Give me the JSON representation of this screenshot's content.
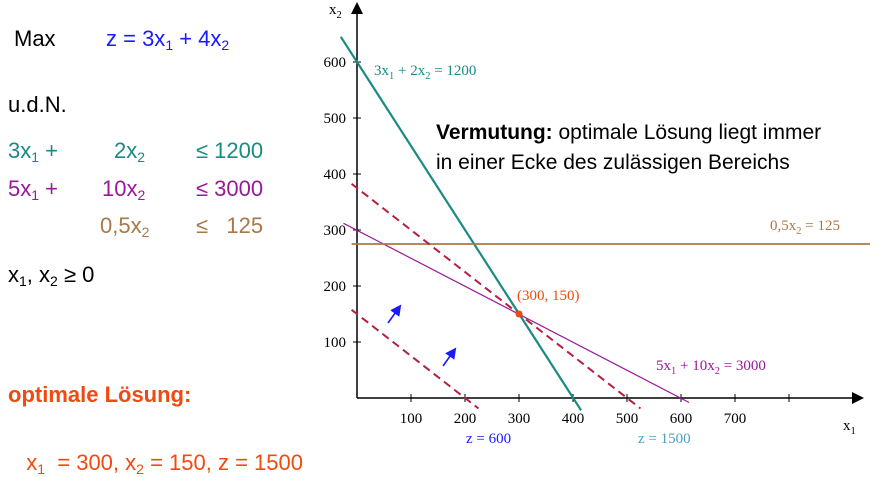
{
  "problem": {
    "max_label": "Max",
    "objective": [
      "z = 3x",
      "1",
      " + 4x",
      "2"
    ],
    "udn": "u.d.N.",
    "c1": {
      "a": [
        "3x",
        "1",
        " +"
      ],
      "b": [
        "2x",
        "2"
      ],
      "rel": "≤ 1200"
    },
    "c2": {
      "a": [
        "5x",
        "1",
        " +"
      ],
      "b": [
        "10x",
        "2"
      ],
      "rel": "≤ 3000"
    },
    "c3": {
      "b": [
        "0,5x",
        "2"
      ],
      "rel": "≤   125"
    },
    "nonneg": [
      "x",
      "1",
      ", x",
      "2",
      " ≥ 0"
    ]
  },
  "solution": {
    "heading": "optimale Lösung:",
    "values": [
      "x",
      "1",
      "  = 300, x",
      "2",
      " = 150, z = 1500"
    ]
  },
  "note": {
    "bold": "Vermutung:",
    "line1": " optimale Lösung liegt immer",
    "line2": "in einer Ecke des zulässigen Bereichs"
  },
  "plot": {
    "x_axis_label": [
      "x",
      "1"
    ],
    "y_axis_label": [
      "x",
      "2"
    ],
    "x_ticks": [
      100,
      200,
      300,
      400,
      500,
      600,
      700
    ],
    "y_ticks": [
      100,
      200,
      300,
      400,
      500,
      600
    ],
    "line_labels": {
      "c1": [
        "3x",
        "1",
        " + 2x",
        "2",
        " = 1200"
      ],
      "c2": [
        "5x",
        "1",
        " + 10x",
        "2",
        " = 3000"
      ],
      "c3": [
        "0,5x",
        "2",
        " = 125"
      ],
      "z600": "z = 600",
      "z1500": "z = 1500"
    },
    "point_label": "(300, 150)",
    "colors": {
      "c1": "#1a8a84",
      "c2": "#99199a",
      "c3": "#a87848",
      "iso": "#b32040",
      "arrow": "#1a1aff",
      "point": "#f04a10",
      "z600": "#1a1aff",
      "z1500": "#4aa0c8"
    }
  }
}
